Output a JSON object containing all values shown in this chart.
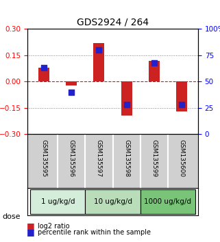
{
  "title": "GDS2924 / 264",
  "samples": [
    "GSM135595",
    "GSM135596",
    "GSM135597",
    "GSM135598",
    "GSM135599",
    "GSM135600"
  ],
  "log2_ratio": [
    0.08,
    -0.02,
    0.22,
    -0.195,
    0.12,
    -0.17
  ],
  "percentile_rank": [
    0.63,
    0.4,
    0.8,
    0.28,
    0.68,
    0.28
  ],
  "groups": [
    {
      "label": "1 ug/kg/d",
      "samples": [
        0,
        1
      ],
      "color": "#d4edda"
    },
    {
      "label": "10 ug/kg/d",
      "samples": [
        2,
        3
      ],
      "color": "#b8ddb8"
    },
    {
      "label": "1000 ug/kg/d",
      "samples": [
        4,
        5
      ],
      "color": "#7ac47a"
    }
  ],
  "bar_color": "#cc2222",
  "dot_color": "#2222cc",
  "ylim_left": [
    -0.3,
    0.3
  ],
  "ylim_right": [
    0,
    100
  ],
  "yticks_left": [
    -0.3,
    -0.15,
    0,
    0.15,
    0.3
  ],
  "yticks_right": [
    0,
    25,
    50,
    75,
    100
  ],
  "ytick_labels_right": [
    "0",
    "25",
    "50",
    "75",
    "100%"
  ],
  "bar_width": 0.4,
  "dot_size": 30,
  "bg_color": "#f5f5f5",
  "dose_label": "dose"
}
